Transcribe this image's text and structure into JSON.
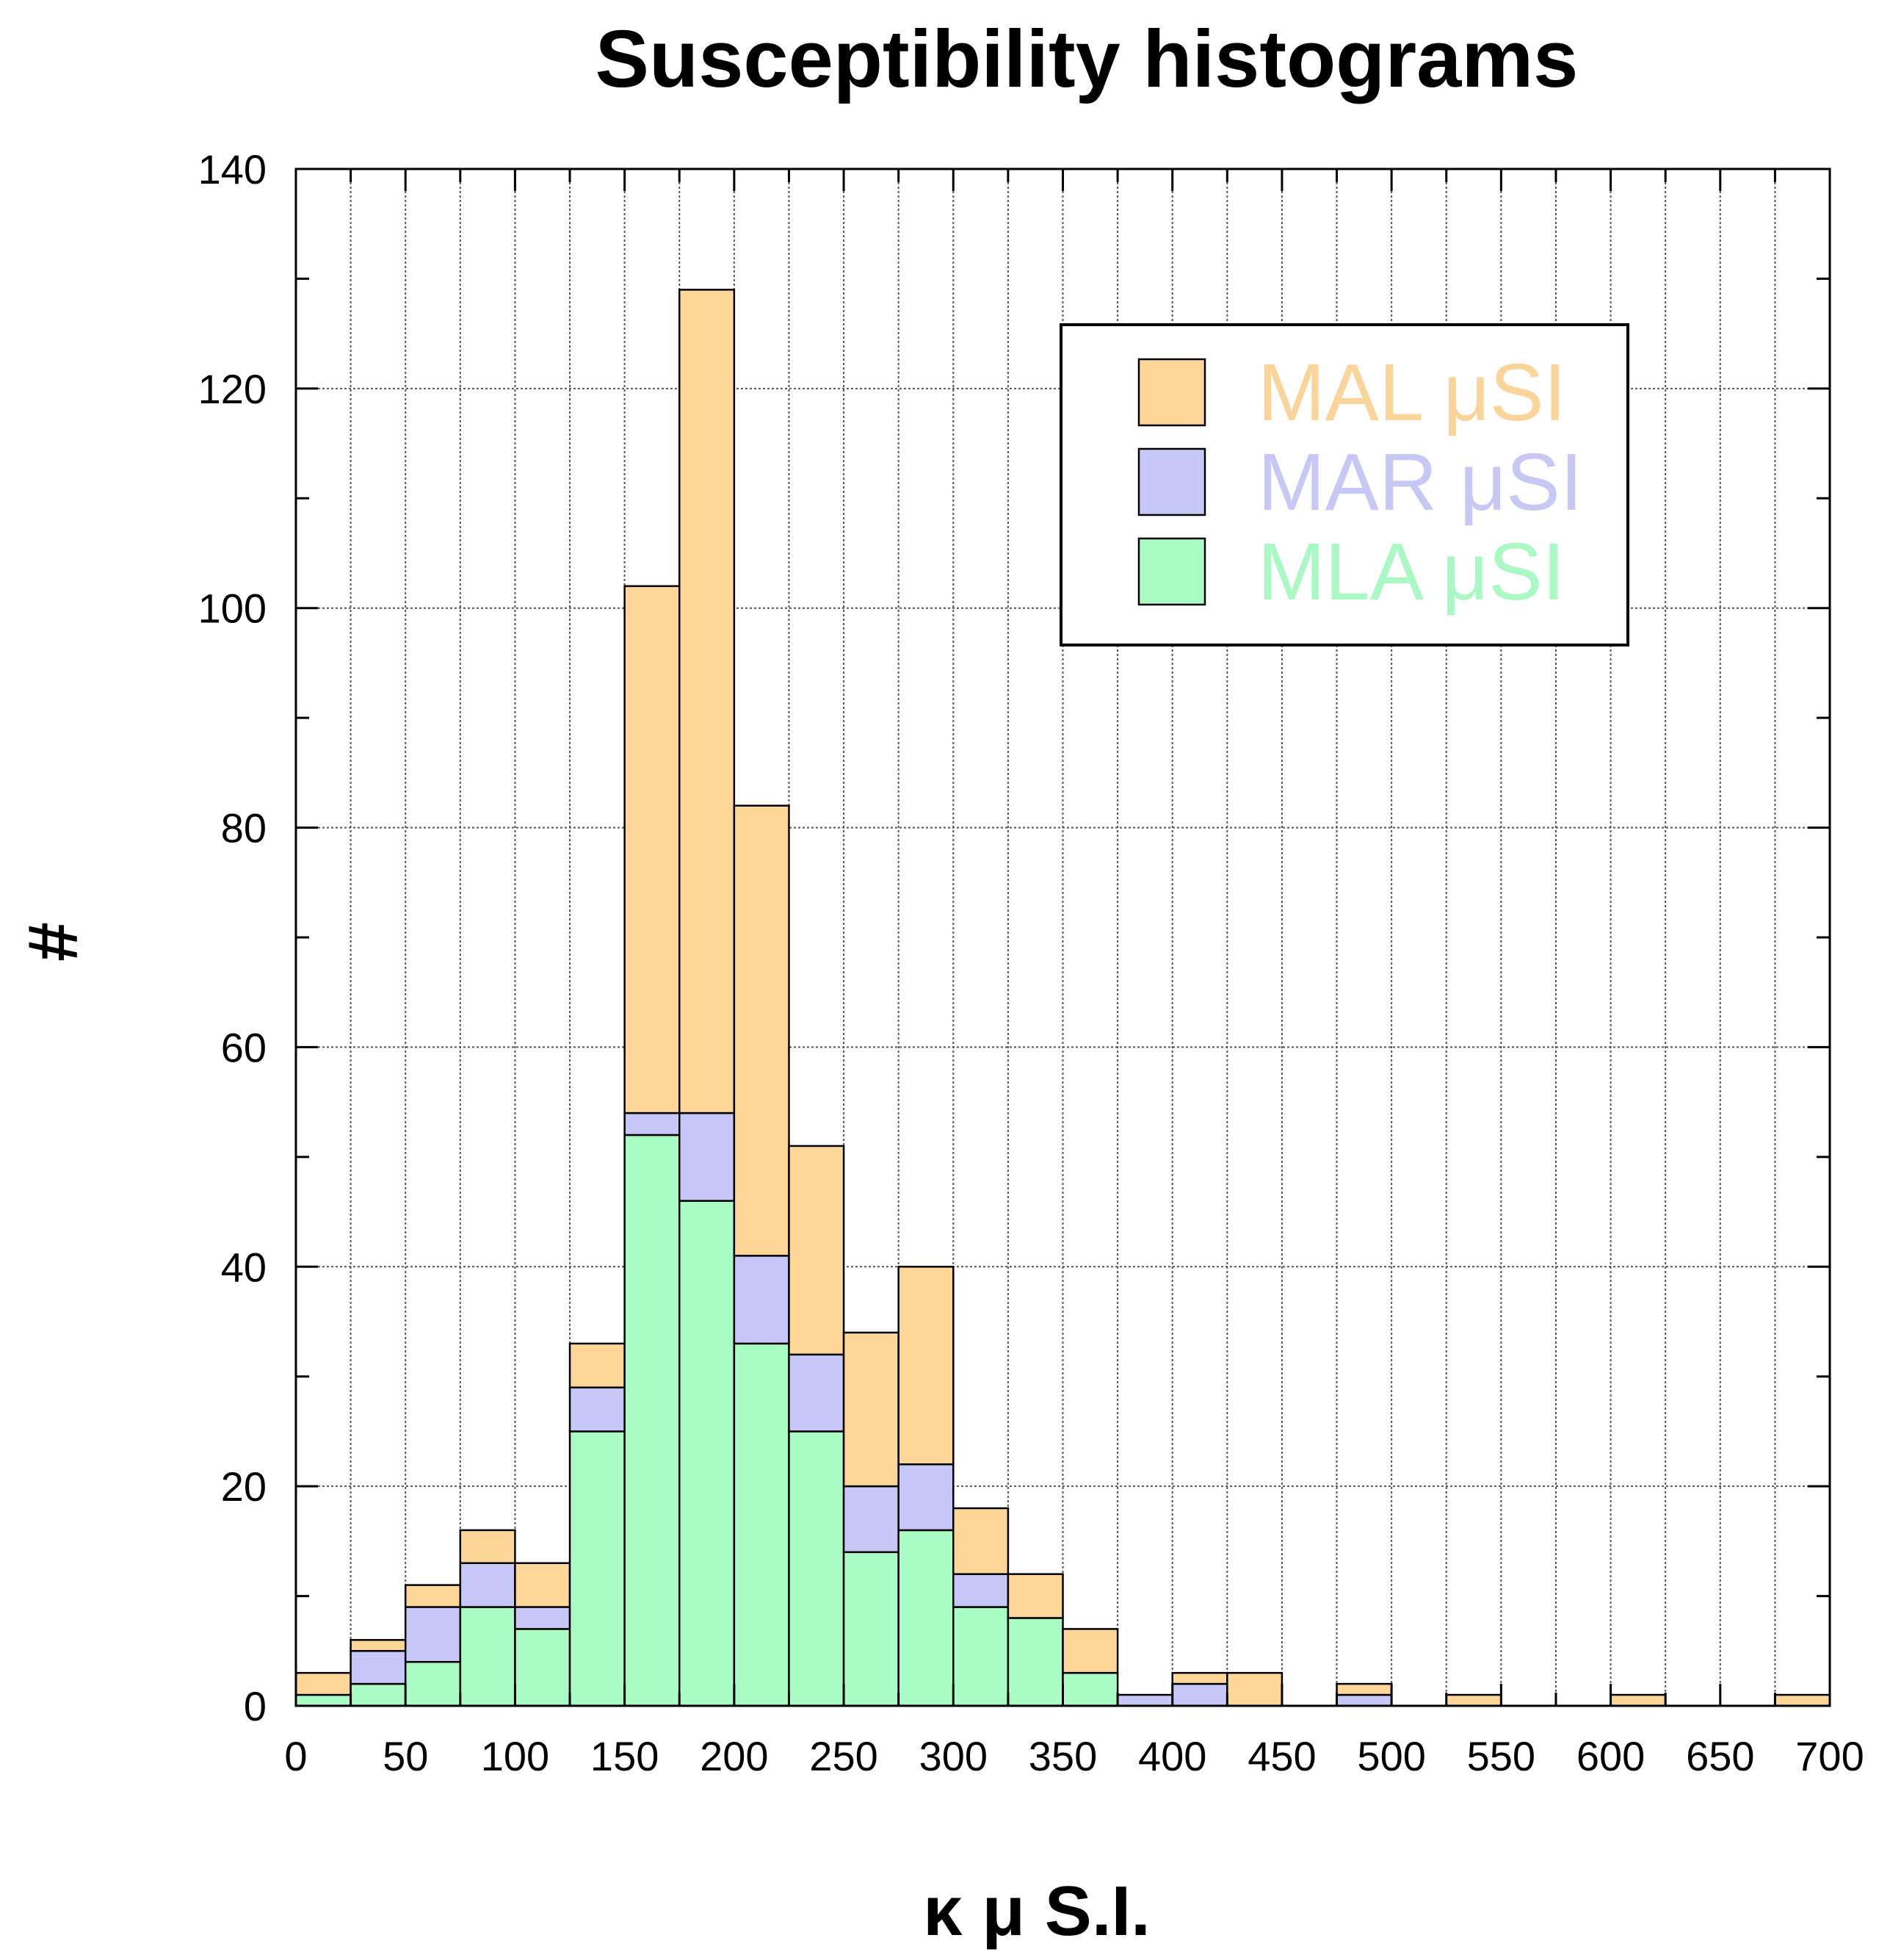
{
  "chart_data": {
    "type": "bar",
    "stacked": true,
    "title": "Susceptibility histograms",
    "xlabel": "κ μ S.I.",
    "ylabel": "#",
    "xlim": [
      0,
      700
    ],
    "ylim": [
      0,
      140
    ],
    "bin_width": 25,
    "x_ticks": [
      0,
      50,
      100,
      150,
      200,
      250,
      300,
      350,
      400,
      450,
      500,
      550,
      600,
      650,
      700
    ],
    "y_ticks": [
      0,
      20,
      40,
      60,
      80,
      100,
      120,
      140
    ],
    "bin_starts": [
      0,
      25,
      50,
      75,
      100,
      125,
      150,
      175,
      200,
      225,
      250,
      275,
      300,
      325,
      350,
      375,
      400,
      425,
      450,
      475,
      500,
      525,
      550,
      575,
      600,
      625,
      650,
      675
    ],
    "series": [
      {
        "name": "MLA μSI",
        "color": "#a8fcc4",
        "values": [
          1,
          2,
          4,
          9,
          7,
          25,
          52,
          46,
          33,
          25,
          14,
          16,
          9,
          8,
          3,
          0,
          0,
          0,
          0,
          0,
          0,
          0,
          0,
          0,
          0,
          0,
          0,
          0
        ]
      },
      {
        "name": "MAR μSI",
        "color": "#c8c8f8",
        "values": [
          0,
          3,
          5,
          4,
          2,
          4,
          2,
          8,
          8,
          7,
          6,
          6,
          3,
          0,
          0,
          1,
          2,
          0,
          0,
          1,
          0,
          0,
          0,
          0,
          0,
          0,
          0,
          0
        ]
      },
      {
        "name": "MAL μSI",
        "color": "#fdd698",
        "values": [
          2,
          1,
          2,
          3,
          4,
          4,
          48,
          75,
          41,
          19,
          14,
          18,
          6,
          4,
          4,
          0,
          1,
          3,
          0,
          1,
          0,
          1,
          0,
          0,
          1,
          0,
          0,
          1
        ]
      }
    ],
    "legend": {
      "position": "top-right",
      "entries": [
        {
          "label": "MAL μSI",
          "color": "#fdd698",
          "text_color": "#fbd49a"
        },
        {
          "label": "MAR μSI",
          "color": "#c8c8f8",
          "text_color": "#c8c8f4"
        },
        {
          "label": "MLA μSI",
          "color": "#a8fcc4",
          "text_color": "#aaf8c4"
        }
      ]
    }
  }
}
